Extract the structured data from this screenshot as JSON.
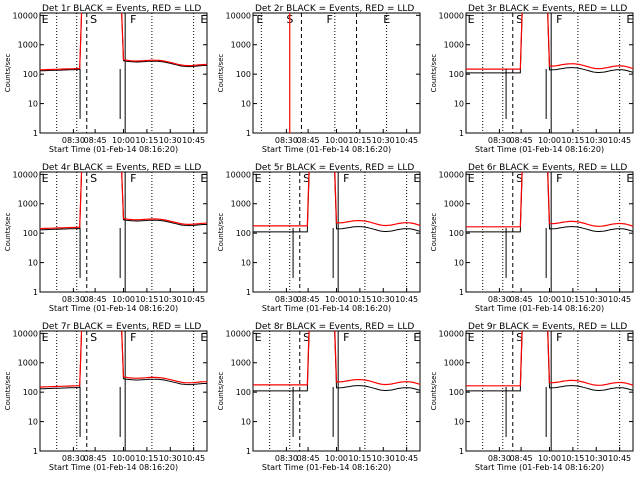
{
  "xlabel": "Start Time (01-Feb-14 08:16:20)",
  "ylabel": "Counts/sec",
  "colors": {
    "events": "#000000",
    "lld": "#ff0000",
    "axes": "#000000"
  },
  "chart_data": [
    {
      "type": "line",
      "title": "Det 1r BLACK = Events, RED = LLD",
      "markers": [
        "E",
        "S",
        "F",
        "E"
      ],
      "lld_offset": 1.08,
      "dip": true,
      "series_type": "normal"
    },
    {
      "type": "line",
      "title": "Det 2r BLACK = Events, RED = LLD",
      "markers": [
        "E",
        "S",
        "F",
        "E"
      ],
      "series_type": "empty"
    },
    {
      "type": "line",
      "title": "Det 3r BLACK = Events, RED = LLD",
      "markers": [
        "E",
        "S",
        "F",
        "E"
      ],
      "lld_offset": 1.35,
      "dip": true,
      "series_type": "high"
    },
    {
      "type": "line",
      "title": "Det 4r BLACK = Events, RED = LLD",
      "markers": [
        "E",
        "S",
        "F",
        "E"
      ],
      "lld_offset": 1.1,
      "dip": true,
      "series_type": "normal"
    },
    {
      "type": "line",
      "title": "Det 5r BLACK = Events, RED = LLD",
      "markers": [
        "E",
        "S",
        "F",
        "E"
      ],
      "lld_offset": 1.6,
      "dip": true,
      "series_type": "high"
    },
    {
      "type": "line",
      "title": "Det 6r BLACK = Events, RED = LLD",
      "markers": [
        "E",
        "S",
        "F",
        "E"
      ],
      "lld_offset": 1.5,
      "dip": true,
      "series_type": "high"
    },
    {
      "type": "line",
      "title": "Det 7r BLACK = Events, RED = LLD",
      "markers": [
        "E",
        "S",
        "F",
        "E"
      ],
      "lld_offset": 1.15,
      "dip": true,
      "series_type": "normal"
    },
    {
      "type": "line",
      "title": "Det 8r BLACK = Events, RED = LLD",
      "markers": [
        "E",
        "S",
        "F",
        "E"
      ],
      "lld_offset": 1.6,
      "dip": true,
      "series_type": "high"
    },
    {
      "type": "line",
      "title": "Det 9r BLACK = Events, RED = LLD",
      "markers": [
        "E",
        "S",
        "F",
        "E"
      ],
      "lld_offset": 1.5,
      "dip": true,
      "series_type": "high"
    }
  ],
  "axis": {
    "x_ticks": [
      "08:30",
      "08:45",
      "10:00",
      "10:15",
      "10:30",
      "10:45"
    ],
    "y_ticks": [
      "1",
      "10",
      "100",
      "1000",
      "10000"
    ],
    "y_min": 1,
    "y_max": 12000,
    "log_y": true
  }
}
